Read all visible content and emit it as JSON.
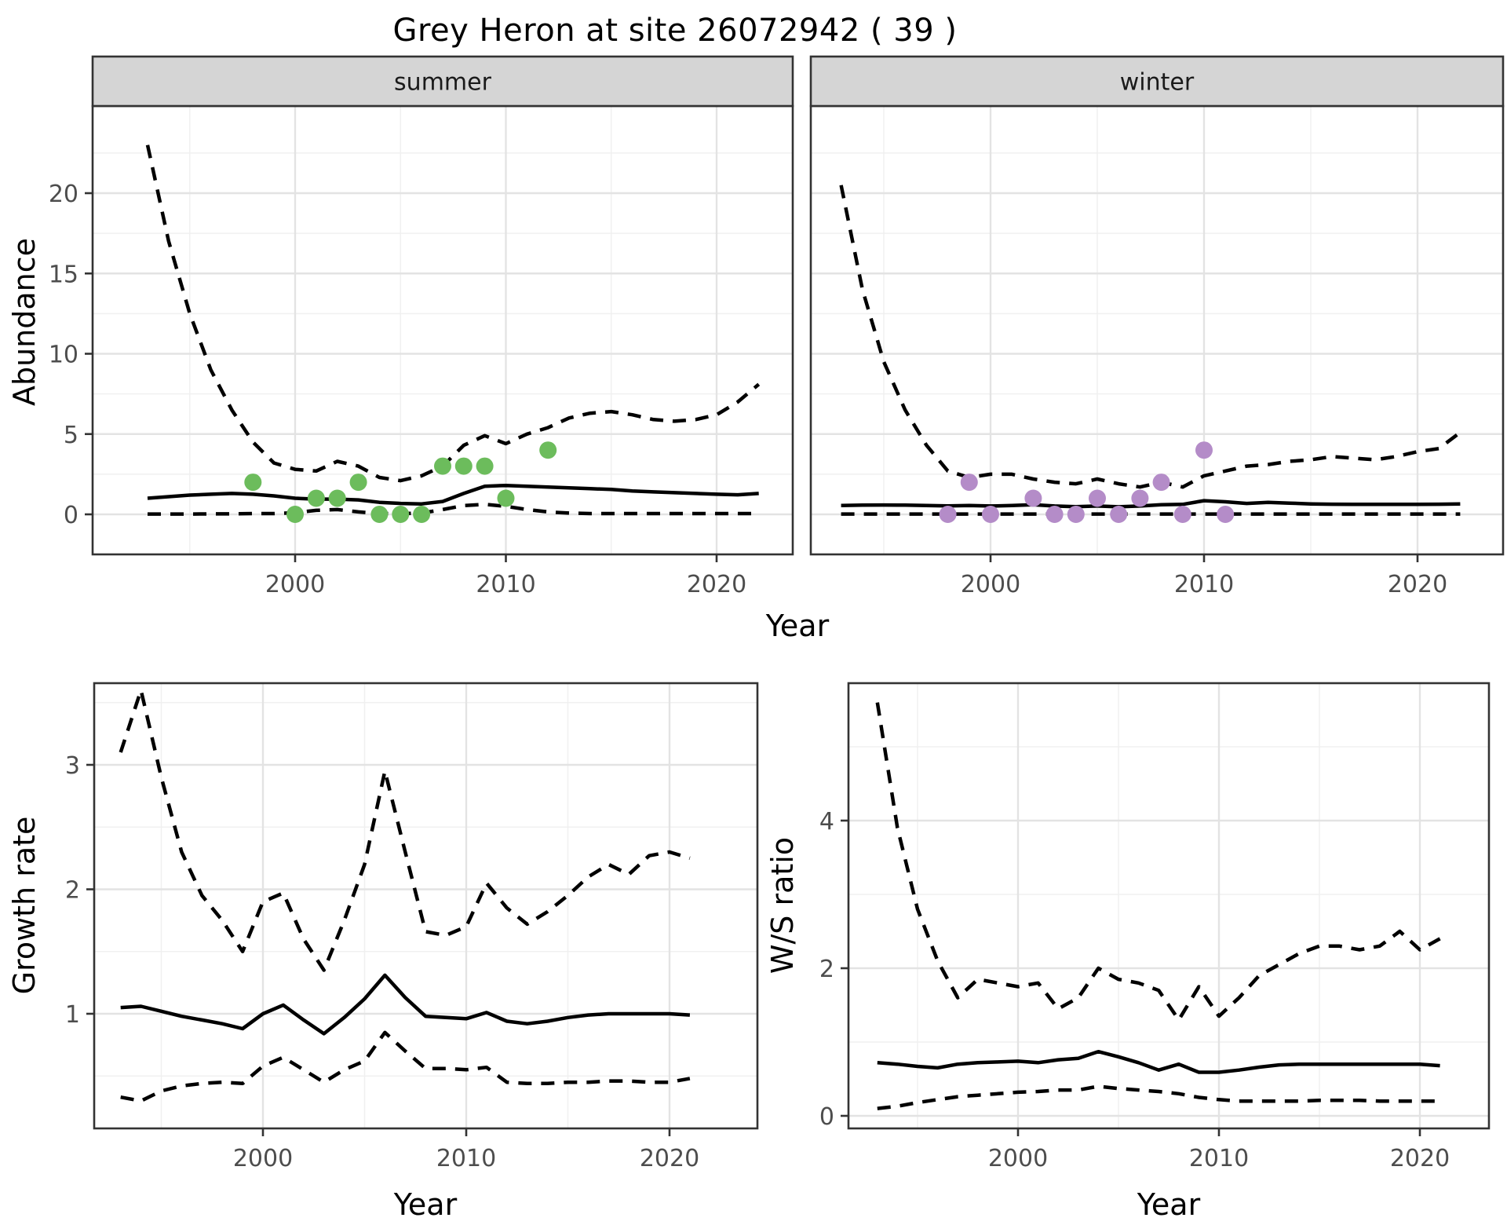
{
  "figure": {
    "title": "Grey Heron at site 26072942 ( 39 )",
    "labels": {
      "abundance": "Abundance",
      "year": "Year",
      "growth_rate": "Growth rate",
      "ws_ratio": "W/S ratio"
    },
    "colors": {
      "summer_points": "#6cbc5c",
      "winter_points": "#b48cc8",
      "line": "#000000",
      "grid_major": "#e3e3e3",
      "grid_minor": "#f0f0f0",
      "strip_bg": "#d5d5d5",
      "panel_border": "#333333",
      "tick_text": "#4d4d4d",
      "panel_bg": "#ffffff"
    }
  },
  "chart_data": [
    {
      "id": "abundance-summer",
      "type": "line",
      "facet_label": "summer",
      "ylabel": "Abundance",
      "xlabel": "Year",
      "x_ticks": [
        2000,
        2010,
        2020
      ],
      "x_minor": [
        1995,
        2005,
        2015
      ],
      "y_ticks": [
        0,
        5,
        10,
        15,
        20
      ],
      "y_minor": [
        2.5,
        7.5,
        12.5,
        17.5,
        22.5
      ],
      "xlim": [
        1990.4,
        2023.6
      ],
      "ylim": [
        -2.5,
        25.4
      ],
      "years": [
        1993,
        1994,
        1995,
        1996,
        1997,
        1998,
        1999,
        2000,
        2001,
        2002,
        2003,
        2004,
        2005,
        2006,
        2007,
        2008,
        2009,
        2010,
        2011,
        2012,
        2013,
        2014,
        2015,
        2016,
        2017,
        2018,
        2019,
        2020,
        2021,
        2022
      ],
      "series": [
        {
          "name": "mean",
          "style": "solid",
          "values": [
            1.0,
            1.1,
            1.2,
            1.25,
            1.3,
            1.25,
            1.15,
            1.0,
            0.95,
            0.95,
            0.9,
            0.75,
            0.68,
            0.65,
            0.8,
            1.3,
            1.75,
            1.8,
            1.75,
            1.7,
            1.65,
            1.6,
            1.55,
            1.45,
            1.4,
            1.35,
            1.3,
            1.25,
            1.22,
            1.3
          ]
        },
        {
          "name": "upper_95ci",
          "style": "dashed",
          "values": [
            23.0,
            17.0,
            12.5,
            9.0,
            6.5,
            4.5,
            3.2,
            2.8,
            2.7,
            3.3,
            3.0,
            2.3,
            2.1,
            2.4,
            3.0,
            4.3,
            4.9,
            4.4,
            5.0,
            5.4,
            6.0,
            6.3,
            6.4,
            6.2,
            5.9,
            5.8,
            5.9,
            6.2,
            7.0,
            8.1
          ]
        },
        {
          "name": "lower_95ci",
          "style": "dashed",
          "values": [
            0.02,
            0.02,
            0.02,
            0.03,
            0.03,
            0.05,
            0.05,
            0.1,
            0.25,
            0.3,
            0.15,
            0.05,
            0.05,
            0.08,
            0.3,
            0.55,
            0.62,
            0.5,
            0.3,
            0.15,
            0.08,
            0.05,
            0.05,
            0.05,
            0.05,
            0.05,
            0.05,
            0.05,
            0.05,
            0.05
          ]
        }
      ],
      "points": {
        "name": "observed-counts-summer",
        "color_key": "summer_points",
        "data": [
          [
            1998,
            2
          ],
          [
            2000,
            0
          ],
          [
            2001,
            1
          ],
          [
            2002,
            1
          ],
          [
            2003,
            2
          ],
          [
            2004,
            0
          ],
          [
            2005,
            0
          ],
          [
            2006,
            0
          ],
          [
            2007,
            3
          ],
          [
            2008,
            3
          ],
          [
            2009,
            3
          ],
          [
            2010,
            1
          ],
          [
            2012,
            4
          ]
        ]
      }
    },
    {
      "id": "abundance-winter",
      "type": "line",
      "facet_label": "winter",
      "ylabel": "Abundance",
      "xlabel": "Year",
      "x_ticks": [
        2000,
        2010,
        2020
      ],
      "x_minor": [
        1995,
        2005,
        2015
      ],
      "y_ticks": [
        0,
        5,
        10,
        15,
        20
      ],
      "y_minor": [
        2.5,
        7.5,
        12.5,
        17.5,
        22.5
      ],
      "xlim": [
        1991.6,
        2024.0
      ],
      "ylim": [
        -2.5,
        25.4
      ],
      "years": [
        1993,
        1994,
        1995,
        1996,
        1997,
        1998,
        1999,
        2000,
        2001,
        2002,
        2003,
        2004,
        2005,
        2006,
        2007,
        2008,
        2009,
        2010,
        2011,
        2012,
        2013,
        2014,
        2015,
        2016,
        2017,
        2018,
        2019,
        2020,
        2021,
        2022
      ],
      "series": [
        {
          "name": "mean",
          "style": "solid",
          "values": [
            0.55,
            0.57,
            0.58,
            0.57,
            0.55,
            0.53,
            0.55,
            0.52,
            0.55,
            0.6,
            0.52,
            0.48,
            0.52,
            0.47,
            0.52,
            0.6,
            0.62,
            0.85,
            0.78,
            0.68,
            0.75,
            0.7,
            0.65,
            0.63,
            0.62,
            0.62,
            0.62,
            0.62,
            0.63,
            0.65
          ]
        },
        {
          "name": "upper_95ci",
          "style": "dashed",
          "values": [
            20.5,
            14.0,
            9.5,
            6.5,
            4.3,
            2.7,
            2.3,
            2.5,
            2.5,
            2.2,
            2.0,
            1.9,
            2.2,
            1.9,
            1.7,
            2.0,
            1.7,
            2.4,
            2.7,
            3.0,
            3.1,
            3.3,
            3.4,
            3.6,
            3.5,
            3.4,
            3.6,
            3.9,
            4.1,
            5.1
          ]
        },
        {
          "name": "lower_95ci",
          "style": "dashed",
          "values": [
            0.02,
            0.02,
            0.02,
            0.02,
            0.02,
            0.02,
            0.02,
            0.02,
            0.02,
            0.02,
            0.02,
            0.02,
            0.02,
            0.02,
            0.02,
            0.02,
            0.02,
            0.02,
            0.02,
            0.02,
            0.02,
            0.02,
            0.02,
            0.02,
            0.02,
            0.02,
            0.02,
            0.02,
            0.02,
            0.02
          ]
        }
      ],
      "points": {
        "name": "observed-counts-winter",
        "color_key": "winter_points",
        "data": [
          [
            1998,
            0
          ],
          [
            1999,
            2
          ],
          [
            2000,
            0
          ],
          [
            2002,
            1
          ],
          [
            2003,
            0
          ],
          [
            2004,
            0
          ],
          [
            2005,
            1
          ],
          [
            2006,
            0
          ],
          [
            2007,
            1
          ],
          [
            2008,
            2
          ],
          [
            2009,
            0
          ],
          [
            2010,
            4
          ],
          [
            2011,
            0
          ]
        ]
      }
    },
    {
      "id": "growth-rate",
      "type": "line",
      "facet_label": null,
      "ylabel": "Growth rate",
      "xlabel": "Year",
      "x_ticks": [
        2000,
        2010,
        2020
      ],
      "x_minor": [
        1995,
        2005,
        2015
      ],
      "y_ticks": [
        1,
        2,
        3
      ],
      "y_minor": [
        0.5,
        1.5,
        2.5,
        3.5
      ],
      "xlim": [
        1991.7,
        2024.3
      ],
      "ylim": [
        0.08,
        3.66
      ],
      "years": [
        1993,
        1994,
        1995,
        1996,
        1997,
        1998,
        1999,
        2000,
        2001,
        2002,
        2003,
        2004,
        2005,
        2006,
        2007,
        2008,
        2009,
        2010,
        2011,
        2012,
        2013,
        2014,
        2015,
        2016,
        2017,
        2018,
        2019,
        2020,
        2021
      ],
      "series": [
        {
          "name": "mean",
          "style": "solid",
          "values": [
            1.05,
            1.06,
            1.02,
            0.98,
            0.95,
            0.92,
            0.88,
            1.0,
            1.07,
            0.95,
            0.84,
            0.97,
            1.12,
            1.31,
            1.13,
            0.98,
            0.97,
            0.96,
            1.01,
            0.94,
            0.92,
            0.94,
            0.97,
            0.99,
            1.0,
            1.0,
            1.0,
            1.0,
            0.99
          ]
        },
        {
          "name": "upper_95ci",
          "style": "dashed",
          "values": [
            3.1,
            3.6,
            2.9,
            2.3,
            1.95,
            1.75,
            1.5,
            1.9,
            1.97,
            1.6,
            1.35,
            1.75,
            2.2,
            2.95,
            2.3,
            1.66,
            1.63,
            1.7,
            2.05,
            1.85,
            1.72,
            1.82,
            1.95,
            2.1,
            2.2,
            2.12,
            2.27,
            2.3,
            2.25
          ]
        },
        {
          "name": "lower_95ci",
          "style": "dashed",
          "values": [
            0.33,
            0.3,
            0.38,
            0.42,
            0.44,
            0.45,
            0.44,
            0.58,
            0.65,
            0.55,
            0.45,
            0.55,
            0.62,
            0.85,
            0.7,
            0.56,
            0.56,
            0.55,
            0.57,
            0.45,
            0.44,
            0.44,
            0.45,
            0.45,
            0.46,
            0.46,
            0.45,
            0.45,
            0.48
          ]
        }
      ],
      "points": null
    },
    {
      "id": "ws-ratio",
      "type": "line",
      "facet_label": null,
      "ylabel": "W/S ratio",
      "xlabel": "Year",
      "x_ticks": [
        2000,
        2010,
        2020
      ],
      "x_minor": [
        1995,
        2005,
        2015
      ],
      "y_ticks": [
        0,
        2,
        4
      ],
      "y_minor": [
        1,
        3,
        5
      ],
      "xlim": [
        1991.6,
        2023.4
      ],
      "ylim": [
        -0.2,
        5.9
      ],
      "years": [
        1993,
        1994,
        1995,
        1996,
        1997,
        1998,
        1999,
        2000,
        2001,
        2002,
        2003,
        2004,
        2005,
        2006,
        2007,
        2008,
        2009,
        2010,
        2011,
        2012,
        2013,
        2014,
        2015,
        2016,
        2017,
        2018,
        2019,
        2020,
        2021
      ],
      "series": [
        {
          "name": "mean",
          "style": "solid",
          "values": [
            0.72,
            0.7,
            0.67,
            0.65,
            0.7,
            0.72,
            0.73,
            0.74,
            0.72,
            0.76,
            0.78,
            0.87,
            0.8,
            0.72,
            0.62,
            0.7,
            0.59,
            0.59,
            0.62,
            0.66,
            0.69,
            0.7,
            0.7,
            0.7,
            0.7,
            0.7,
            0.7,
            0.7,
            0.68
          ]
        },
        {
          "name": "upper_95ci",
          "style": "dashed",
          "values": [
            5.6,
            3.9,
            2.8,
            2.1,
            1.6,
            1.85,
            1.8,
            1.75,
            1.8,
            1.45,
            1.6,
            2.0,
            1.85,
            1.8,
            1.7,
            1.3,
            1.75,
            1.35,
            1.6,
            1.9,
            2.05,
            2.2,
            2.3,
            2.3,
            2.25,
            2.3,
            2.5,
            2.25,
            2.4
          ]
        },
        {
          "name": "lower_95ci",
          "style": "dashed",
          "values": [
            0.1,
            0.13,
            0.18,
            0.22,
            0.26,
            0.28,
            0.3,
            0.32,
            0.33,
            0.35,
            0.35,
            0.4,
            0.37,
            0.35,
            0.33,
            0.3,
            0.25,
            0.22,
            0.2,
            0.2,
            0.2,
            0.2,
            0.21,
            0.21,
            0.21,
            0.2,
            0.2,
            0.2,
            0.2
          ]
        }
      ],
      "points": null
    }
  ]
}
